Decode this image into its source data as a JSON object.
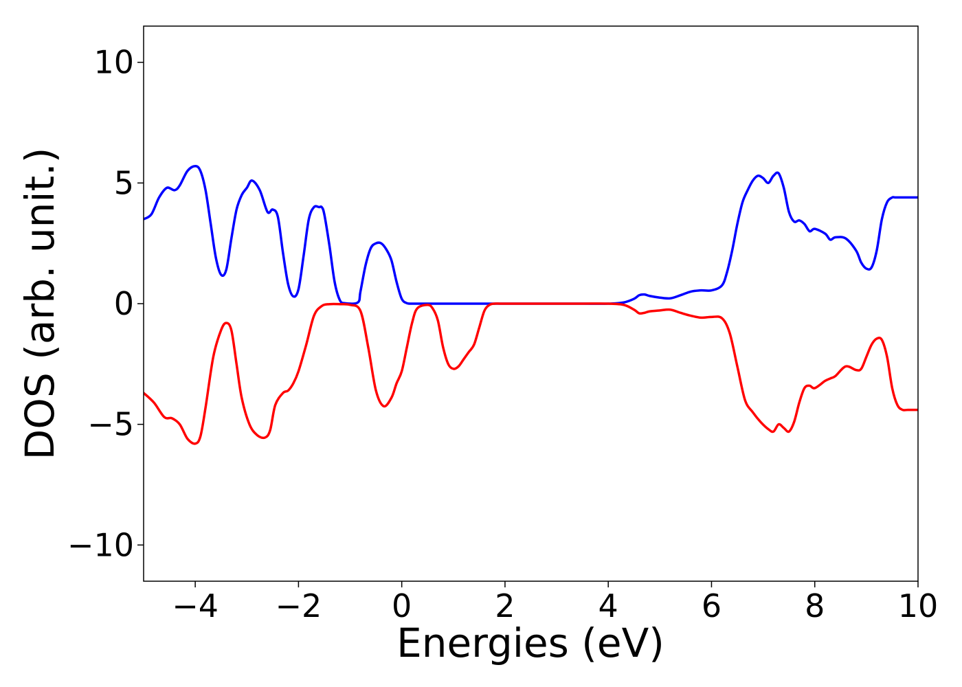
{
  "chart_data": {
    "type": "line",
    "title": "",
    "xlabel": "Energies (eV)",
    "ylabel": "DOS (arb. unit.)",
    "xlim": [
      -5,
      10
    ],
    "ylim": [
      -11.5,
      11.5
    ],
    "xticks": [
      -4,
      -2,
      0,
      2,
      4,
      6,
      8,
      10
    ],
    "xtick_labels": [
      "−4",
      "−2",
      "0",
      "2",
      "4",
      "6",
      "8",
      "10"
    ],
    "yticks": [
      -10,
      -5,
      0,
      5,
      10
    ],
    "ytick_labels": [
      "−10",
      "−5",
      "0",
      "5",
      "10"
    ],
    "grid": false,
    "legend": "none",
    "series": [
      {
        "color": "#0000ff",
        "x": [
          -5.0,
          -4.85,
          -4.7,
          -4.55,
          -4.4,
          -4.3,
          -4.15,
          -4.0,
          -3.9,
          -3.8,
          -3.7,
          -3.6,
          -3.5,
          -3.4,
          -3.3,
          -3.2,
          -3.1,
          -3.0,
          -2.9,
          -2.75,
          -2.6,
          -2.5,
          -2.4,
          -2.3,
          -2.2,
          -2.1,
          -2.0,
          -1.9,
          -1.8,
          -1.7,
          -1.6,
          -1.55,
          -1.5,
          -1.4,
          -1.3,
          -1.2,
          -1.1,
          -0.85,
          -0.8,
          -0.7,
          -0.6,
          -0.5,
          -0.4,
          -0.3,
          -0.2,
          -0.1,
          0.0,
          0.1,
          0.2,
          0.3,
          0.4,
          0.5,
          0.6,
          0.7,
          0.8,
          0.9,
          1.0,
          1.1,
          1.2,
          1.3,
          1.4,
          1.5,
          1.6,
          1.7,
          2.0,
          2.5,
          3.0,
          3.5,
          4.0,
          4.3,
          4.5,
          4.6,
          4.7,
          4.8,
          5.0,
          5.2,
          5.4,
          5.6,
          5.8,
          6.0,
          6.2,
          6.3,
          6.4,
          6.5,
          6.6,
          6.7,
          6.8,
          6.9,
          7.0,
          7.1,
          7.2,
          7.3,
          7.4,
          7.5,
          7.6,
          7.7,
          7.8,
          7.9,
          8.0,
          8.2,
          8.3,
          8.4,
          8.6,
          8.8,
          8.9,
          9.0,
          9.1,
          9.2,
          9.3,
          9.4,
          9.5,
          9.55,
          9.6,
          9.7,
          9.8,
          9.9,
          10.0
        ],
        "y": [
          3.5,
          3.7,
          4.4,
          4.8,
          4.7,
          4.9,
          5.5,
          5.7,
          5.5,
          4.7,
          3.3,
          1.9,
          1.2,
          1.4,
          2.7,
          3.9,
          4.5,
          4.8,
          5.1,
          4.7,
          3.8,
          3.9,
          3.6,
          2.1,
          0.8,
          0.3,
          0.6,
          2.0,
          3.5,
          4.0,
          4.0,
          4.0,
          3.7,
          2.4,
          0.9,
          0.15,
          0.02,
          0.05,
          0.5,
          1.6,
          2.3,
          2.5,
          2.5,
          2.25,
          1.8,
          0.9,
          0.2,
          0.02,
          0.0,
          0.0,
          0.0,
          0.0,
          0.0,
          0.0,
          0.0,
          0.0,
          0.0,
          0.0,
          0.0,
          0.0,
          0.0,
          0.0,
          0.0,
          0.0,
          0.0,
          0.0,
          0.0,
          0.0,
          0.0,
          0.05,
          0.2,
          0.35,
          0.38,
          0.32,
          0.25,
          0.22,
          0.35,
          0.5,
          0.55,
          0.55,
          0.75,
          1.3,
          2.2,
          3.3,
          4.2,
          4.7,
          5.1,
          5.3,
          5.2,
          5.0,
          5.3,
          5.4,
          4.8,
          3.8,
          3.4,
          3.45,
          3.3,
          3.0,
          3.1,
          2.9,
          2.65,
          2.75,
          2.7,
          2.2,
          1.7,
          1.45,
          1.5,
          2.2,
          3.5,
          4.2,
          4.4,
          4.4,
          4.4,
          4.4,
          4.4,
          4.4,
          4.4
        ],
        "scale_y": true
      },
      {
        "color": "#ff0000",
        "x": [
          -5.0,
          -4.8,
          -4.6,
          -4.45,
          -4.3,
          -4.15,
          -4.0,
          -3.9,
          -3.8,
          -3.65,
          -3.5,
          -3.4,
          -3.3,
          -3.2,
          -3.1,
          -2.95,
          -2.8,
          -2.65,
          -2.55,
          -2.45,
          -2.3,
          -2.2,
          -2.1,
          -2.0,
          -1.85,
          -1.7,
          -1.55,
          -1.4,
          -1.2,
          -1.0,
          -0.8,
          -0.65,
          -0.5,
          -0.35,
          -0.2,
          -0.1,
          0.0,
          0.1,
          0.2,
          0.3,
          0.5,
          0.6,
          0.7,
          0.8,
          0.9,
          1.0,
          1.1,
          1.2,
          1.3,
          1.4,
          1.5,
          1.6,
          1.7,
          1.8,
          1.9,
          2.0,
          2.1,
          2.3,
          2.5,
          3.0,
          3.5,
          4.0,
          4.3,
          4.5,
          4.6,
          4.7,
          4.8,
          5.0,
          5.2,
          5.4,
          5.6,
          5.8,
          6.0,
          6.2,
          6.35,
          6.5,
          6.65,
          6.8,
          6.95,
          7.1,
          7.2,
          7.3,
          7.4,
          7.5,
          7.6,
          7.7,
          7.8,
          7.9,
          8.0,
          8.2,
          8.3,
          8.4,
          8.6,
          8.8,
          8.9,
          9.0,
          9.1,
          9.2,
          9.3,
          9.4,
          9.5,
          9.6,
          9.7,
          9.8,
          9.9,
          10.0
        ],
        "y": [
          -3.7,
          -4.1,
          -4.7,
          -4.75,
          -5.0,
          -5.6,
          -5.8,
          -5.5,
          -4.3,
          -2.2,
          -1.1,
          -0.8,
          -1.1,
          -2.5,
          -3.9,
          -5.0,
          -5.45,
          -5.55,
          -5.25,
          -4.2,
          -3.7,
          -3.6,
          -3.3,
          -2.8,
          -1.7,
          -0.5,
          -0.1,
          -0.02,
          -0.02,
          -0.05,
          -0.3,
          -1.8,
          -3.6,
          -4.25,
          -3.9,
          -3.3,
          -2.8,
          -1.8,
          -0.8,
          -0.2,
          -0.05,
          -0.2,
          -0.7,
          -1.8,
          -2.5,
          -2.7,
          -2.6,
          -2.3,
          -2.0,
          -1.7,
          -1.0,
          -0.3,
          -0.05,
          -0.0,
          -0.0,
          -0.0,
          -0.0,
          -0.0,
          -0.0,
          -0.0,
          -0.0,
          -0.0,
          -0.05,
          -0.25,
          -0.4,
          -0.38,
          -0.32,
          -0.28,
          -0.25,
          -0.38,
          -0.5,
          -0.58,
          -0.55,
          -0.6,
          -1.2,
          -2.6,
          -4.0,
          -4.5,
          -4.9,
          -5.2,
          -5.3,
          -5.0,
          -5.15,
          -5.3,
          -4.9,
          -4.1,
          -3.5,
          -3.4,
          -3.5,
          -3.2,
          -3.1,
          -3.0,
          -2.6,
          -2.75,
          -2.7,
          -2.2,
          -1.7,
          -1.45,
          -1.5,
          -2.2,
          -3.5,
          -4.2,
          -4.4,
          -4.4,
          -4.4,
          -4.4
        ]
      }
    ]
  }
}
